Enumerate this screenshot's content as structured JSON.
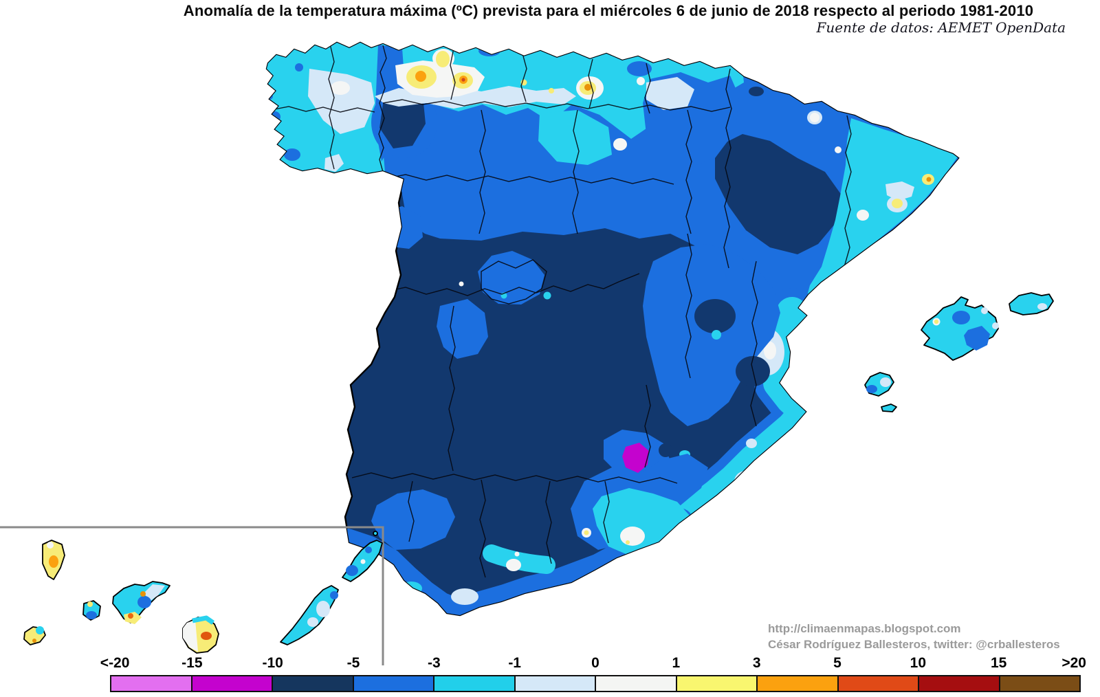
{
  "title": "Anomalía de la temperatura máxima (ºC) prevista para el miércoles 6 de junio de 2018 respecto al periodo 1981-2010",
  "source_note": "Fuente de datos: AEMET OpenData",
  "attribution": {
    "url": "http://climaenmapas.blogspot.com",
    "credit": "César Rodríguez Ballesteros, twitter: @crballesteros"
  },
  "legend": {
    "unit": "ºC",
    "tick_labels": [
      "<-20",
      "-15",
      "-10",
      "-5",
      "-3",
      "-1",
      "0",
      "1",
      "3",
      "5",
      "10",
      "15",
      ">20"
    ],
    "segment_colors": [
      "#E36FF0",
      "#C403CE",
      "#15365E",
      "#1C6FDF",
      "#22CFEA",
      "#D5E8F8",
      "#F4F5F3",
      "#F9F66F",
      "#FBA10F",
      "#E04A17",
      "#A50E10",
      "#7B4D16"
    ]
  },
  "map": {
    "region": "Spain: peninsula, Balearic Islands, Canary Islands inset",
    "palette": {
      "violet": "#E36FF0",
      "magenta": "#C403CE",
      "navy": "#12386E",
      "blue": "#1C6FDF",
      "cyan": "#29D2EE",
      "light_blue": "#D5E8F8",
      "white": "#F5F6F5",
      "yellow": "#F7EC77",
      "orange": "#FBA10F",
      "red_orange": "#E04A17",
      "dark_red": "#A50E10",
      "brown": "#7B4D16"
    }
  }
}
